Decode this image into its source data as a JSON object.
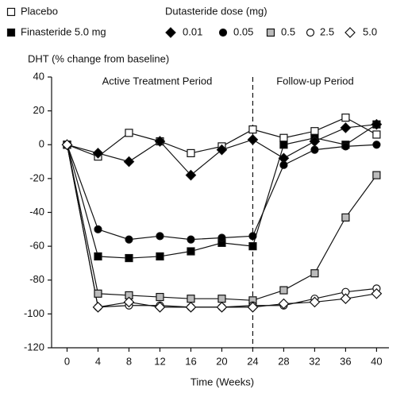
{
  "chart_data": {
    "type": "line",
    "y_label": "DHT (% change from baseline)",
    "x_label": "Time (Weeks)",
    "legend_title": "Dutasteride dose (mg)",
    "annotations": [
      "Active Treatment Period",
      "Follow-up Period"
    ],
    "reference_x": 24,
    "x": [
      0,
      4,
      8,
      12,
      16,
      20,
      24,
      28,
      32,
      36,
      40
    ],
    "xlim": [
      -2,
      41.6
    ],
    "xticks": [
      0,
      4,
      8,
      12,
      16,
      20,
      24,
      28,
      32,
      36,
      40
    ],
    "ylim": [
      -120,
      40
    ],
    "yticks": [
      -120,
      -100,
      -80,
      -60,
      -40,
      -20,
      0,
      20,
      40
    ],
    "series": [
      {
        "name": "Placebo",
        "color": "#111111",
        "marker": "square",
        "marker_fill": "#ffffff",
        "values": [
          0,
          -7,
          7,
          2,
          -5,
          -1,
          9,
          4,
          8,
          16,
          6
        ]
      },
      {
        "name": "Finasteride 5.0 mg",
        "color": "#111111",
        "marker": "square",
        "marker_fill": "#000000",
        "values": [
          0,
          -66,
          -67,
          -66,
          -63,
          -58,
          -60,
          0,
          4,
          0,
          12
        ]
      },
      {
        "name": "0.01",
        "color": "#111111",
        "marker": "diamond",
        "marker_fill": "#000000",
        "values": [
          0,
          -5,
          -10,
          2,
          -18,
          -3,
          3,
          -8,
          2,
          10,
          12
        ]
      },
      {
        "name": "0.05",
        "color": "#111111",
        "marker": "circle",
        "marker_fill": "#000000",
        "values": [
          0,
          -50,
          -56,
          -54,
          -56,
          -55,
          -54,
          -12,
          -3,
          -1,
          0
        ]
      },
      {
        "name": "0.5",
        "color": "#111111",
        "marker": "square",
        "marker_fill": "#bbbbbb",
        "values": [
          0,
          -88,
          -89,
          -90,
          -91,
          -91,
          -92,
          -86,
          -76,
          -43,
          -18
        ]
      },
      {
        "name": "2.5",
        "color": "#111111",
        "marker": "circle",
        "marker_fill": "#ffffff",
        "values": [
          0,
          -96,
          -95,
          -95,
          -96,
          -96,
          -95,
          -95,
          -91,
          -87,
          -85
        ]
      },
      {
        "name": "5.0",
        "color": "#111111",
        "marker": "diamond",
        "marker_fill": "#ffffff",
        "values": [
          0,
          -96,
          -93,
          -96,
          -96,
          -96,
          -96,
          -94,
          -93,
          -91,
          -88
        ]
      }
    ]
  }
}
